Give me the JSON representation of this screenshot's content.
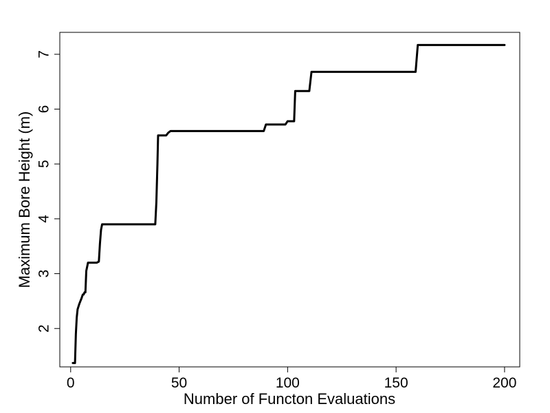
{
  "chart_data": {
    "type": "line",
    "xlabel": "Number of Functon Evaluations",
    "ylabel": "Maximum Bore Height (m)",
    "xlim": [
      -5,
      207
    ],
    "ylim": [
      1.3,
      7.4
    ],
    "xticks": [
      0,
      50,
      100,
      150,
      200
    ],
    "yticks": [
      2,
      3,
      4,
      5,
      6,
      7
    ],
    "grid": false,
    "series": [
      {
        "color": "#000000",
        "x": [
          1,
          2,
          2.4,
          2.8,
          3.2,
          4,
          5,
          5.6,
          6,
          6.4,
          6.8,
          7.2,
          8,
          10,
          12,
          13,
          13.5,
          14,
          14.5,
          39,
          39.5,
          40,
          40.3,
          41,
          44,
          45,
          46,
          89,
          90,
          99,
          100,
          103,
          103.5,
          104,
          110,
          111,
          159,
          160,
          200
        ],
        "y": [
          1.37,
          1.37,
          1.9,
          2.2,
          2.35,
          2.45,
          2.55,
          2.62,
          2.62,
          2.66,
          2.66,
          3.05,
          3.2,
          3.2,
          3.2,
          3.22,
          3.55,
          3.8,
          3.9,
          3.9,
          4.3,
          5.0,
          5.52,
          5.52,
          5.52,
          5.57,
          5.6,
          5.6,
          5.72,
          5.72,
          5.78,
          5.78,
          6.33,
          6.33,
          6.33,
          6.68,
          6.68,
          7.17,
          7.17
        ]
      }
    ]
  }
}
